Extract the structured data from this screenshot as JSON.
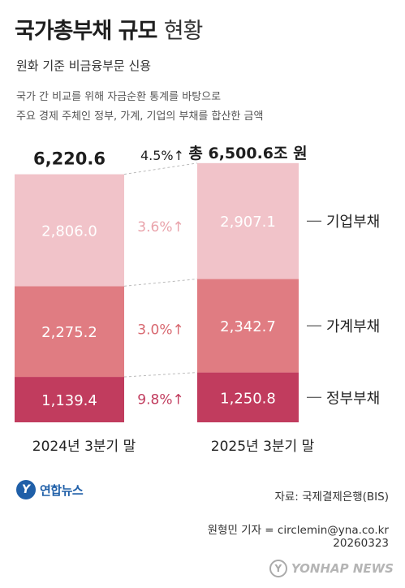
{
  "header": {
    "title_bold": "국가총부채 규모",
    "title_light": "현황",
    "subtitle": "원화 기준 비금융부문 신용",
    "note_line1": "국가 간 비교를 위해 자금순환 통계를 바탕으로",
    "note_line2": "주요 경제 주체인 정부, 가계, 기업의 부채를 합산한 금액"
  },
  "chart_data": {
    "type": "bar",
    "stacked": true,
    "categories": [
      "2024년 3분기 말",
      "2025년 3분기 말"
    ],
    "series": [
      {
        "name": "정부부채",
        "values": [
          1139.4,
          1250.8
        ],
        "color": "#c13c5e",
        "label_color": "#ffffff",
        "growth": "9.8%↑",
        "growth_color": "#c13c5e"
      },
      {
        "name": "가계부채",
        "values": [
          2275.2,
          2342.7
        ],
        "color": "#e07c82",
        "label_color": "#ffffff",
        "growth": "3.0%↑",
        "growth_color": "#d86870"
      },
      {
        "name": "기업부채",
        "values": [
          2806.0,
          2907.1
        ],
        "color": "#f1c3c9",
        "label_color": "#ffffff",
        "growth": "3.6%↑",
        "growth_color": "#e9a3ab"
      }
    ],
    "totals": [
      "6,220.6",
      "총 6,500.6조 원"
    ],
    "total_growth": "4.5%↑",
    "value_labels": [
      [
        "1,139.4",
        "2,275.2",
        "2,806.0"
      ],
      [
        "1,250.8",
        "2,342.7",
        "2,907.1"
      ]
    ]
  },
  "footer": {
    "source": "자료: 국제결제은행(BIS)",
    "credit": "원형민 기자 = circlemin@yna.co.kr",
    "date": "20260323",
    "logo_left": "연합뉴스",
    "logo_right": "YONHAP NEWS"
  }
}
